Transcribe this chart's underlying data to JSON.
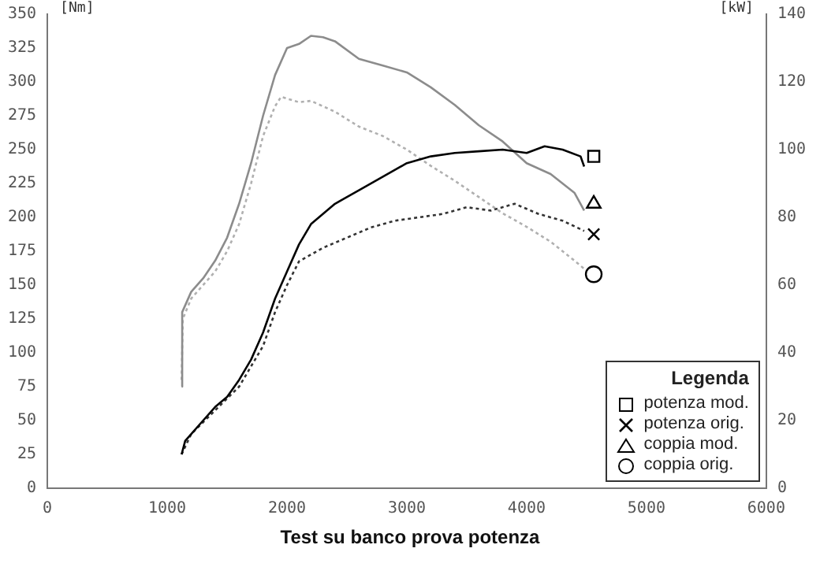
{
  "chart_data": {
    "type": "line",
    "title": "Test su banco prova potenza",
    "ylabel": "[Nm]",
    "y2label": "[kW]",
    "legend_title": "Legenda",
    "legend": "bottom right",
    "grid": false,
    "xlim": [
      0,
      6000
    ],
    "xticks": [
      0,
      1000,
      2000,
      3000,
      4000,
      5000,
      6000
    ],
    "ylim": [
      0,
      350
    ],
    "yticks": [
      0,
      25,
      50,
      75,
      100,
      125,
      150,
      175,
      200,
      225,
      250,
      275,
      300,
      325,
      350
    ],
    "y2lim": [
      0,
      140
    ],
    "y2ticks": [
      0,
      20,
      40,
      60,
      80,
      100,
      120,
      140
    ],
    "series": [
      {
        "color": "#000000",
        "axis": "y2",
        "line_style": "solid",
        "x": [
          1120,
          1150,
          1300,
          1400,
          1500,
          1600,
          1700,
          1800,
          1900,
          2000,
          2100,
          2200,
          2400,
          2600,
          2800,
          3000,
          3200,
          3400,
          3600,
          3800,
          4000,
          4150,
          4300,
          4450,
          4480
        ],
        "values": [
          10,
          14,
          20,
          24,
          27,
          32,
          38,
          46,
          56,
          64,
          72,
          78,
          84,
          88,
          92,
          96,
          98,
          99,
          99.5,
          100,
          99,
          101,
          100,
          98,
          95
        ]
      },
      {
        "color": "#333333",
        "axis": "y2",
        "line_style": "dotted",
        "x": [
          1120,
          1200,
          1400,
          1600,
          1800,
          1900,
          2000,
          2100,
          2300,
          2500,
          2700,
          2900,
          3100,
          3300,
          3500,
          3700,
          3900,
          4100,
          4300,
          4480
        ],
        "values": [
          10,
          16,
          23,
          30,
          42,
          52,
          60,
          67,
          71,
          74,
          77,
          79,
          80,
          81,
          83,
          82,
          84,
          81,
          79,
          76
        ]
      },
      {
        "color": "#8c8c8c",
        "axis": "y",
        "line_style": "solid",
        "x": [
          1120,
          1125,
          1200,
          1300,
          1400,
          1500,
          1600,
          1700,
          1800,
          1900,
          2000,
          2100,
          2200,
          2300,
          2400,
          2600,
          2800,
          3000,
          3200,
          3400,
          3600,
          3800,
          4000,
          4200,
          4400,
          4480
        ],
        "values": [
          75,
          130,
          145,
          155,
          168,
          185,
          210,
          240,
          275,
          305,
          325,
          328,
          334,
          333,
          330,
          317,
          312,
          307,
          296,
          283,
          268,
          256,
          240,
          232,
          218,
          205
        ]
      },
      {
        "color": "#b0b0b0",
        "axis": "y",
        "line_style": "dotted",
        "x": [
          1120,
          1130,
          1200,
          1400,
          1500,
          1600,
          1700,
          1800,
          1900,
          1950,
          2100,
          2200,
          2400,
          2600,
          2800,
          3000,
          3200,
          3400,
          3600,
          3800,
          4000,
          4200,
          4400,
          4480
        ],
        "values": [
          80,
          125,
          140,
          160,
          175,
          195,
          225,
          260,
          282,
          289,
          285,
          286,
          278,
          267,
          260,
          250,
          238,
          227,
          215,
          203,
          193,
          182,
          168,
          162
        ]
      },
      {
        "name": "potenza mod.",
        "type": "scatter",
        "color": "#000000",
        "axis": "y2",
        "marker": "square",
        "x": [
          4560
        ],
        "values": [
          98
        ]
      },
      {
        "name": "potenza orig.",
        "type": "scatter",
        "color": "#000000",
        "axis": "y2",
        "marker": "cross",
        "x": [
          4560
        ],
        "values": [
          75
        ]
      },
      {
        "name": "coppia mod.",
        "type": "scatter",
        "color": "#000000",
        "axis": "y",
        "marker": "triangle",
        "x": [
          4560
        ],
        "values": [
          210
        ]
      },
      {
        "name": "coppia orig.",
        "type": "scatter",
        "color": "#000000",
        "axis": "y",
        "marker": "circle",
        "x": [
          4560
        ],
        "values": [
          158
        ]
      }
    ]
  }
}
